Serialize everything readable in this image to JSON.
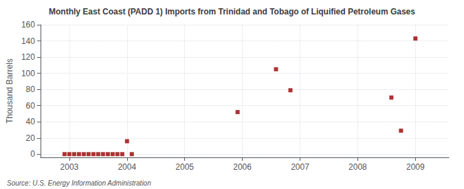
{
  "chart_data": {
    "type": "scatter",
    "title": "Monthly East Coast (PADD 1) Imports from Trinidad and Tobago of Liquified Petroleum Gases",
    "ylabel": "Thousand Barrels",
    "annotations": [
      "Source: U.S. Energy Information Administration"
    ],
    "x": [
      2002.917,
      2003.0,
      2003.083,
      2003.167,
      2003.25,
      2003.333,
      2003.417,
      2003.5,
      2003.583,
      2003.667,
      2003.75,
      2003.833,
      2003.917,
      2004.0,
      2004.083,
      2005.917,
      2006.583,
      2006.833,
      2008.583,
      2008.75,
      2009.0
    ],
    "values": [
      0,
      0,
      0,
      0,
      0,
      0,
      0,
      0,
      0,
      0,
      0,
      0,
      0,
      16,
      0,
      52,
      105,
      79,
      70,
      29,
      143
    ],
    "color": "#990000",
    "marker": "square",
    "xlim": [
      2002.5,
      2009.58
    ],
    "xticks": [
      2003,
      2004,
      2005,
      2006,
      2007,
      2008,
      2009
    ],
    "ylim": [
      -4,
      160
    ],
    "yticks": [
      0,
      20,
      40,
      60,
      80,
      100,
      120,
      140,
      160
    ],
    "grid": true
  }
}
